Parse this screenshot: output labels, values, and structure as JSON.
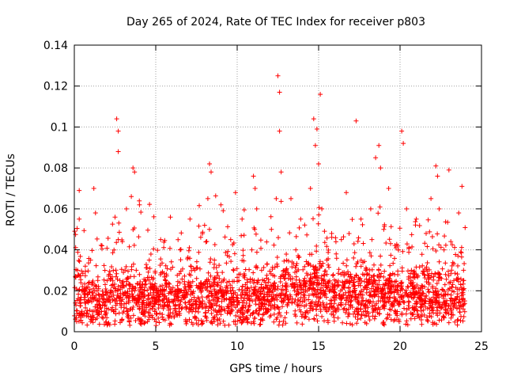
{
  "chart_data": {
    "type": "scatter",
    "title": "Day 265 of 2024, Rate Of TEC Index for receiver p803",
    "xlabel": "GPS time / hours",
    "ylabel": "ROTI / TECUs",
    "xlim": [
      0,
      25
    ],
    "ylim": [
      0,
      0.14
    ],
    "x_ticks": [
      0,
      5,
      10,
      15,
      20,
      25
    ],
    "x_tick_labels": [
      "0",
      "5",
      "10",
      "15",
      "20",
      "25"
    ],
    "y_ticks": [
      0,
      0.02,
      0.04,
      0.06,
      0.08,
      0.1,
      0.12,
      0.14
    ],
    "y_tick_labels": [
      "0",
      "0.02",
      "0.04",
      "0.06",
      "0.08",
      "0.1",
      "0.12",
      "0.14"
    ],
    "grid": true,
    "marker": "+",
    "color": "#ff0000",
    "series": [
      {
        "name": "ROTI",
        "x": [
          0.1,
          0.2,
          0.3,
          0.3,
          0.5,
          0.8,
          1.0,
          1.2,
          1.3,
          1.4,
          1.7,
          2.0,
          2.2,
          2.5,
          2.6,
          2.7,
          2.7,
          2.7,
          2.8,
          3.0,
          3.2,
          3.5,
          3.6,
          3.7,
          3.8,
          4.0,
          4.3,
          4.6,
          5.0,
          5.3,
          5.6,
          5.9,
          6.2,
          6.5,
          6.8,
          7.1,
          7.4,
          7.7,
          8.0,
          8.2,
          8.3,
          8.4,
          8.6,
          9.0,
          9.3,
          9.6,
          9.9,
          10.1,
          10.3,
          10.6,
          10.9,
          11.0,
          11.1,
          11.2,
          11.5,
          11.8,
          12.1,
          12.4,
          12.5,
          12.6,
          12.6,
          12.7,
          13.0,
          13.3,
          13.6,
          13.9,
          14.2,
          14.5,
          14.7,
          14.8,
          14.9,
          15.0,
          15.1,
          15.2,
          15.5,
          15.8,
          16.1,
          16.4,
          16.7,
          17.0,
          17.3,
          17.6,
          17.9,
          18.2,
          18.5,
          18.7,
          18.8,
          19.0,
          19.3,
          19.6,
          19.9,
          20.1,
          20.2,
          20.4,
          20.7,
          21.0,
          21.3,
          21.6,
          21.9,
          22.2,
          22.3,
          22.4,
          22.7,
          23.0,
          23.3,
          23.6,
          23.8,
          23.9
        ],
        "y": [
          0.013,
          0.03,
          0.069,
          0.055,
          0.022,
          0.018,
          0.035,
          0.07,
          0.058,
          0.02,
          0.042,
          0.015,
          0.028,
          0.056,
          0.104,
          0.098,
          0.088,
          0.045,
          0.025,
          0.018,
          0.06,
          0.066,
          0.08,
          0.078,
          0.03,
          0.062,
          0.02,
          0.035,
          0.015,
          0.045,
          0.025,
          0.056,
          0.018,
          0.04,
          0.022,
          0.055,
          0.03,
          0.015,
          0.052,
          0.065,
          0.082,
          0.078,
          0.035,
          0.062,
          0.02,
          0.045,
          0.068,
          0.025,
          0.055,
          0.018,
          0.04,
          0.076,
          0.07,
          0.06,
          0.03,
          0.015,
          0.05,
          0.065,
          0.125,
          0.117,
          0.098,
          0.078,
          0.03,
          0.065,
          0.04,
          0.055,
          0.02,
          0.07,
          0.104,
          0.091,
          0.099,
          0.082,
          0.116,
          0.06,
          0.035,
          0.048,
          0.018,
          0.045,
          0.068,
          0.025,
          0.103,
          0.055,
          0.03,
          0.06,
          0.085,
          0.091,
          0.08,
          0.05,
          0.07,
          0.022,
          0.04,
          0.098,
          0.092,
          0.06,
          0.03,
          0.055,
          0.018,
          0.048,
          0.065,
          0.081,
          0.076,
          0.06,
          0.04,
          0.079,
          0.025,
          0.058,
          0.071,
          0.03
        ]
      }
    ],
    "density_profile": {
      "x": [
        0,
        2,
        4,
        6,
        8,
        10,
        12,
        14,
        16,
        18,
        20,
        22,
        24
      ],
      "baseline": [
        0.016,
        0.016,
        0.016,
        0.016,
        0.016,
        0.015,
        0.018,
        0.02,
        0.019,
        0.018,
        0.018,
        0.016,
        0.015
      ]
    }
  }
}
